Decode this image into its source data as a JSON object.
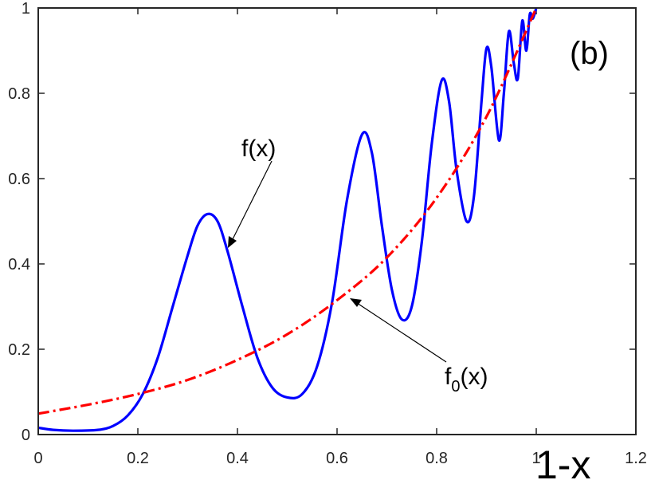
{
  "chart_data": {
    "type": "line",
    "panel_label": "(b)",
    "xlabel": "1-x",
    "xlim": [
      0,
      1.2
    ],
    "ylim": [
      0,
      1
    ],
    "xticks": [
      0,
      0.2,
      0.4,
      0.6,
      0.8,
      1,
      1.2
    ],
    "xtick_labels": [
      "0",
      "0.2",
      "0.4",
      "0.6",
      "0.8",
      "1",
      "1.2"
    ],
    "yticks": [
      0,
      0.2,
      0.4,
      0.6,
      0.8,
      1
    ],
    "ytick_labels": [
      "0",
      "0.2",
      "0.4",
      "0.6",
      "0.8",
      "1"
    ],
    "grid": false,
    "series": [
      {
        "name": "f(x)",
        "color": "#0000ff",
        "line_style": "solid",
        "points": [
          [
            0,
            0.016
          ],
          [
            0.03,
            0.011
          ],
          [
            0.07,
            0.009
          ],
          [
            0.12,
            0.011
          ],
          [
            0.15,
            0.02
          ],
          [
            0.18,
            0.045
          ],
          [
            0.21,
            0.095
          ],
          [
            0.24,
            0.18
          ],
          [
            0.27,
            0.3
          ],
          [
            0.3,
            0.42
          ],
          [
            0.32,
            0.49
          ],
          [
            0.34,
            0.517
          ],
          [
            0.36,
            0.5
          ],
          [
            0.38,
            0.43
          ],
          [
            0.41,
            0.3
          ],
          [
            0.44,
            0.18
          ],
          [
            0.47,
            0.11
          ],
          [
            0.5,
            0.087
          ],
          [
            0.53,
            0.095
          ],
          [
            0.56,
            0.16
          ],
          [
            0.59,
            0.31
          ],
          [
            0.62,
            0.55
          ],
          [
            0.65,
            0.703
          ],
          [
            0.67,
            0.66
          ],
          [
            0.69,
            0.49
          ],
          [
            0.71,
            0.34
          ],
          [
            0.73,
            0.27
          ],
          [
            0.75,
            0.3
          ],
          [
            0.77,
            0.45
          ],
          [
            0.79,
            0.68
          ],
          [
            0.81,
            0.83
          ],
          [
            0.825,
            0.78
          ],
          [
            0.84,
            0.62
          ],
          [
            0.86,
            0.5
          ],
          [
            0.875,
            0.56
          ],
          [
            0.89,
            0.78
          ],
          [
            0.9,
            0.905
          ],
          [
            0.91,
            0.86
          ],
          [
            0.925,
            0.69
          ],
          [
            0.935,
            0.8
          ],
          [
            0.945,
            0.945
          ],
          [
            0.955,
            0.87
          ],
          [
            0.963,
            0.835
          ],
          [
            0.972,
            0.97
          ],
          [
            0.98,
            0.9
          ],
          [
            0.987,
            0.985
          ],
          [
            0.993,
            0.975
          ],
          [
            1.0,
            1.0
          ]
        ]
      },
      {
        "name": "f0(x)",
        "color": "#ff0000",
        "line_style": "dash-dot",
        "points": [
          [
            0,
            0.049
          ],
          [
            0.1,
            0.07
          ],
          [
            0.2,
            0.095
          ],
          [
            0.3,
            0.128
          ],
          [
            0.4,
            0.175
          ],
          [
            0.5,
            0.235
          ],
          [
            0.6,
            0.315
          ],
          [
            0.7,
            0.415
          ],
          [
            0.8,
            0.555
          ],
          [
            0.9,
            0.745
          ],
          [
            1.0,
            1.0
          ]
        ]
      }
    ],
    "annotations": [
      {
        "name": "f-label",
        "text": "f(x)",
        "arrow_to": [
          0.375,
          0.44
        ]
      },
      {
        "name": "f0-label",
        "text_main": "f",
        "text_sub": "0",
        "text_tail": "(x)",
        "arrow_to": [
          0.63,
          0.32
        ]
      }
    ]
  }
}
